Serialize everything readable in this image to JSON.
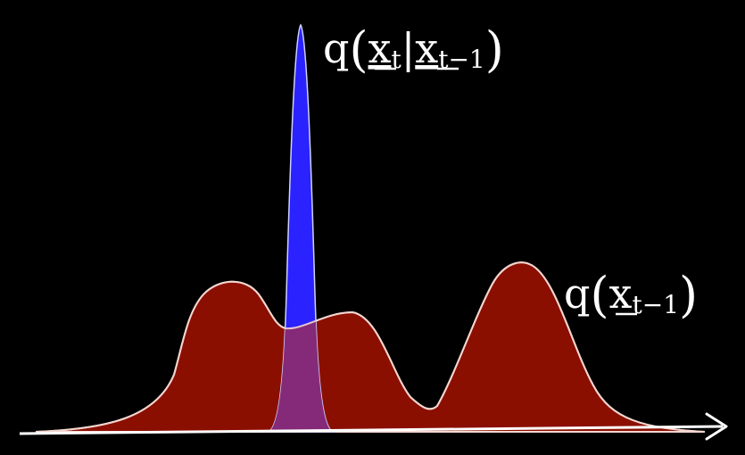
{
  "labels": {
    "transition": {
      "func": "q",
      "open": "(",
      "var1": "x",
      "sub1": "t",
      "bar": "|",
      "var2": "x",
      "sub2": "t−1",
      "close": ")"
    },
    "marginal": {
      "func": "q",
      "open": "(",
      "var": "x",
      "sub": "t−1",
      "close": ")"
    }
  },
  "colors": {
    "background": "#000000",
    "marginal_fill": "#8b0f00",
    "marginal_outline": "#f3d6cf",
    "transition_fill": "#2a22ff",
    "overlap_fill": "#8a2a72",
    "axis": "#ffffff",
    "text": "#ffffff"
  }
}
